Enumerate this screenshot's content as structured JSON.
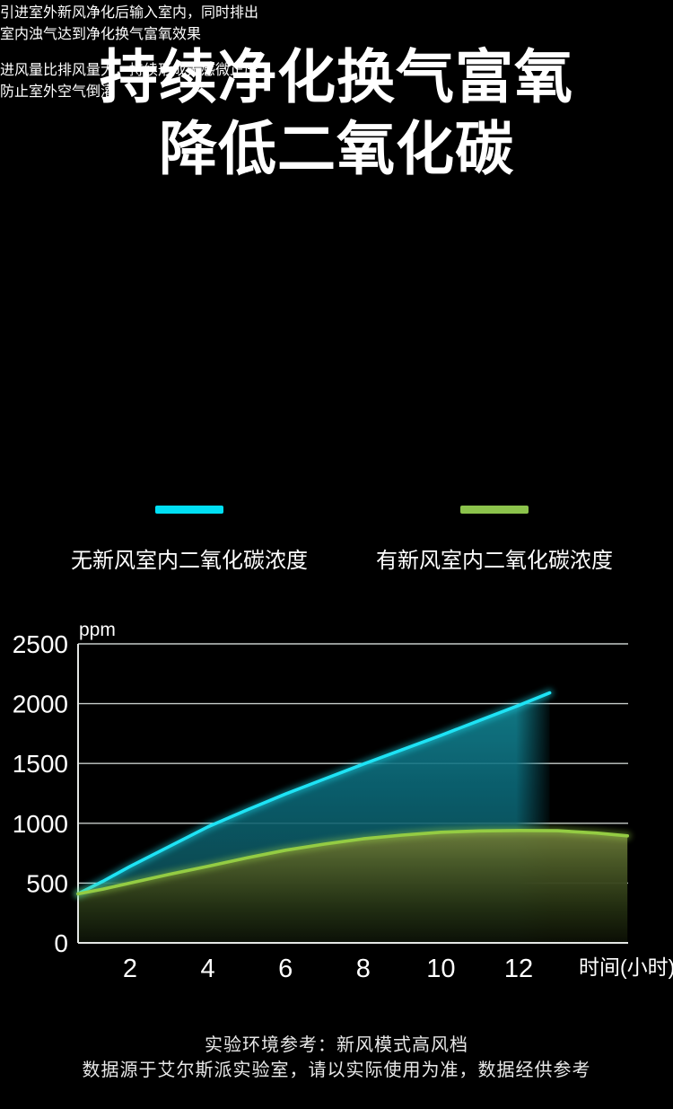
{
  "page": {
    "background": "#000000"
  },
  "header": {
    "title_line1": "持续净化换气富氧",
    "title_line2": "降低二氧化碳",
    "subtitle_line1": "引进室外新风净化后输入室内，同时排出",
    "subtitle_line2": "室内浊气达到净化换气富氧效果"
  },
  "feature_note": {
    "line1": "进风量比排风量大，持续形成无感微正压",
    "line2": "防止室外空气倒灌"
  },
  "legend": {
    "items": [
      {
        "label": "无新风室内二氧化碳浓度",
        "color": "#00dff4"
      },
      {
        "label": "有新风室内二氧化碳浓度",
        "color": "#8cc34c"
      }
    ]
  },
  "chart_data": {
    "type": "line",
    "y_unit_label": "ppm",
    "xlabel": "时间(小时)",
    "x_ticks": [
      2,
      4,
      6,
      8,
      10,
      12
    ],
    "y_ticks": [
      0,
      500,
      1000,
      1500,
      2000,
      2500
    ],
    "ylim": [
      0,
      2500
    ],
    "xlim": [
      0.66,
      14.8
    ],
    "grid": "horizontal",
    "legend_position": "above-chart",
    "series": [
      {
        "name": "无新风室内二氧化碳浓度",
        "color": "#1ee3f5",
        "x": [
          0.66,
          1.3,
          2,
          3,
          4,
          5,
          6,
          7,
          8,
          9,
          10,
          11,
          12,
          12.8
        ],
        "y": [
          410,
          515,
          640,
          805,
          970,
          1110,
          1245,
          1370,
          1495,
          1615,
          1735,
          1860,
          1985,
          2090
        ]
      },
      {
        "name": "有新风室内二氧化碳浓度",
        "color": "#94cc43",
        "x": [
          0.66,
          1.3,
          2,
          3,
          4,
          5,
          6,
          7,
          8,
          9,
          10,
          11,
          12,
          13,
          14,
          14.8
        ],
        "y": [
          410,
          450,
          500,
          572,
          640,
          710,
          775,
          826,
          870,
          901,
          925,
          936,
          940,
          938,
          918,
          895
        ]
      }
    ]
  },
  "footer": {
    "line1": "实验环境参考：新风模式高风档",
    "line2": "数据源于艾尔斯派实验室，请以实际使用为准，数据经供参考"
  }
}
